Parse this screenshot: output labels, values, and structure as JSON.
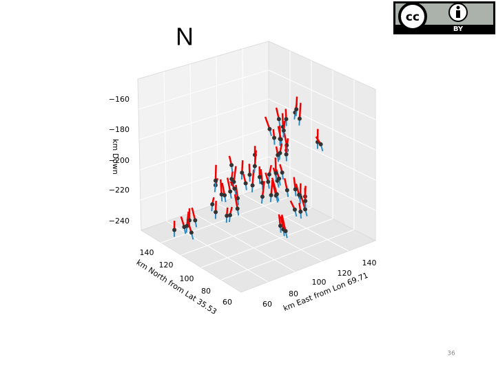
{
  "slide": {
    "title": "N",
    "page_number": "36"
  },
  "license": {
    "badge": "BY",
    "cc": "cc"
  },
  "figure": {
    "z_label": "km Down",
    "z_ticks": [
      "−160",
      "−180",
      "−200",
      "−220",
      "−240"
    ],
    "north_label": "km North from Lat 35.53",
    "north_ticks": [
      "140",
      "120",
      "100",
      "80",
      "60"
    ],
    "east_label": "km East from Lon 69.71",
    "east_ticks": [
      "60",
      "80",
      "100",
      "120",
      "140"
    ]
  }
}
